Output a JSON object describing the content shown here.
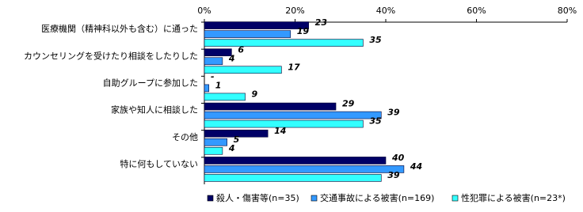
{
  "chart_data": {
    "type": "hbar",
    "categories": [
      "医療機関（精神科以外も含む）に通った",
      "カウンセリングを受けたり相談をしたりした",
      "自助グループに参加した",
      "家族や知人に相談した",
      "その他",
      "特に何もしていない"
    ],
    "series": [
      {
        "name": "殺人・傷害等(n=35)",
        "color": "#000066",
        "values": [
          23,
          6,
          null,
          29,
          14,
          40
        ],
        "value_labels": [
          "23",
          "6",
          "-",
          "29",
          "14",
          "40"
        ]
      },
      {
        "name": "交通事故による被害(n=169)",
        "color": "#3399ff",
        "values": [
          19,
          4,
          1,
          39,
          5,
          44
        ]
      },
      {
        "name": "性犯罪による被害(n=23*)",
        "color": "#33ffff",
        "values": [
          35,
          17,
          9,
          35,
          4,
          39
        ]
      }
    ],
    "xlim": [
      0,
      80
    ],
    "xticks": [
      {
        "value": 0,
        "label": "0%"
      },
      {
        "value": 20,
        "label": "20%"
      },
      {
        "value": 40,
        "label": "40%"
      },
      {
        "value": 60,
        "label": "60%"
      },
      {
        "value": 80,
        "label": "80%"
      }
    ],
    "legend": "bottom"
  }
}
